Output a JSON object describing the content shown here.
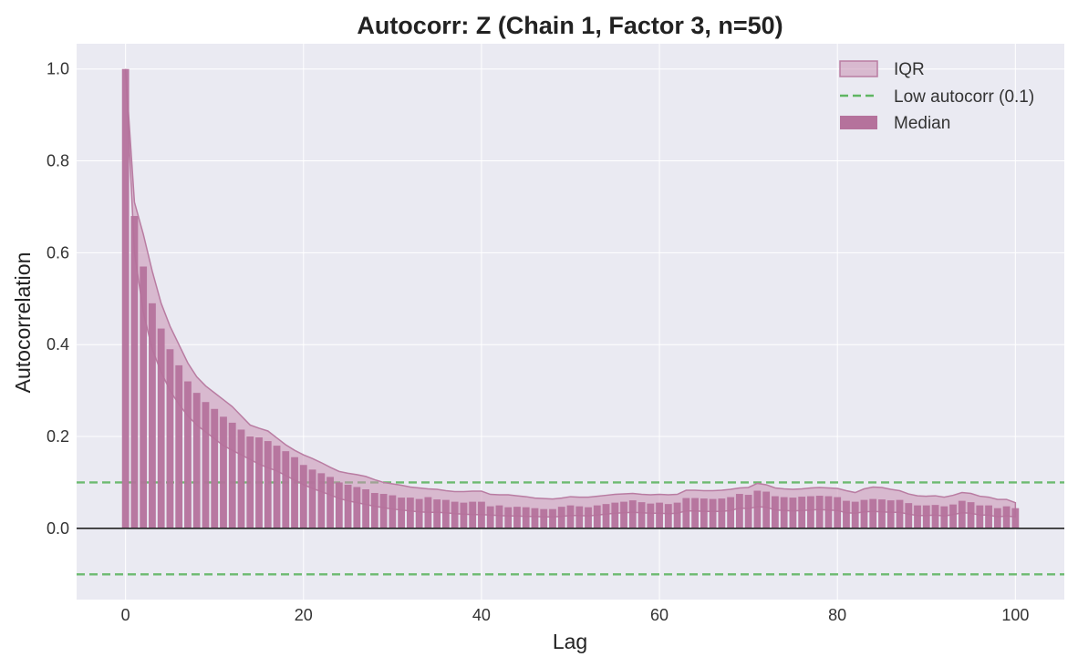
{
  "chart_data": {
    "type": "bar",
    "title": "Autocorr: Z (Chain 1, Factor 3, n=50)",
    "xlabel": "Lag",
    "ylabel": "Autocorrelation",
    "xlim": [
      -5.5,
      105.5
    ],
    "ylim": [
      -0.155,
      1.055
    ],
    "xticks": [
      0,
      20,
      40,
      60,
      80,
      100
    ],
    "yticks": [
      0.0,
      0.2,
      0.4,
      0.6,
      0.8,
      1.0
    ],
    "xtick_labels": [
      "0",
      "20",
      "40",
      "60",
      "80",
      "100"
    ],
    "ytick_labels": [
      "0.0",
      "0.2",
      "0.4",
      "0.6",
      "0.8",
      "1.0"
    ],
    "grid": true,
    "legend": {
      "position": "top-right",
      "entries": [
        {
          "label": "IQR",
          "kind": "band"
        },
        {
          "label": "Low autocorr (0.1)",
          "kind": "dashed-line"
        },
        {
          "label": "Median",
          "kind": "bar"
        }
      ]
    },
    "colors": {
      "background": "#eaeaf2",
      "grid": "#ffffff",
      "median_bar": "#b5729c",
      "iqr_fill": "#c98fb2",
      "iqr_edge": "#b97ca2",
      "threshold": "#5fb562",
      "zero_line": "#222222"
    },
    "threshold": 0.1,
    "lags": [
      0,
      1,
      2,
      3,
      4,
      5,
      6,
      7,
      8,
      9,
      10,
      11,
      12,
      13,
      14,
      15,
      16,
      17,
      18,
      19,
      20,
      21,
      22,
      23,
      24,
      25,
      26,
      27,
      28,
      29,
      30,
      31,
      32,
      33,
      34,
      35,
      36,
      37,
      38,
      39,
      40,
      41,
      42,
      43,
      44,
      45,
      46,
      47,
      48,
      49,
      50,
      51,
      52,
      53,
      54,
      55,
      56,
      57,
      58,
      59,
      60,
      61,
      62,
      63,
      64,
      65,
      66,
      67,
      68,
      69,
      70,
      71,
      72,
      73,
      74,
      75,
      76,
      77,
      78,
      79,
      80,
      81,
      82,
      83,
      84,
      85,
      86,
      87,
      88,
      89,
      90,
      91,
      92,
      93,
      94,
      95,
      96,
      97,
      98,
      99,
      100
    ],
    "median": [
      1.0,
      0.68,
      0.57,
      0.49,
      0.435,
      0.39,
      0.355,
      0.32,
      0.295,
      0.275,
      0.26,
      0.243,
      0.23,
      0.215,
      0.2,
      0.198,
      0.19,
      0.18,
      0.168,
      0.155,
      0.138,
      0.128,
      0.12,
      0.112,
      0.1,
      0.095,
      0.09,
      0.085,
      0.077,
      0.075,
      0.072,
      0.067,
      0.067,
      0.064,
      0.068,
      0.063,
      0.062,
      0.058,
      0.056,
      0.058,
      0.058,
      0.048,
      0.05,
      0.046,
      0.047,
      0.046,
      0.044,
      0.042,
      0.042,
      0.047,
      0.05,
      0.048,
      0.046,
      0.05,
      0.053,
      0.056,
      0.058,
      0.061,
      0.057,
      0.054,
      0.056,
      0.053,
      0.056,
      0.066,
      0.066,
      0.065,
      0.064,
      0.065,
      0.068,
      0.075,
      0.073,
      0.082,
      0.08,
      0.07,
      0.068,
      0.067,
      0.069,
      0.07,
      0.071,
      0.07,
      0.068,
      0.06,
      0.058,
      0.062,
      0.064,
      0.063,
      0.061,
      0.062,
      0.055,
      0.05,
      0.05,
      0.051,
      0.048,
      0.052,
      0.06,
      0.057,
      0.05,
      0.05,
      0.044,
      0.048,
      0.044
    ],
    "q25": [
      1.0,
      0.6,
      0.47,
      0.39,
      0.34,
      0.3,
      0.27,
      0.245,
      0.225,
      0.21,
      0.195,
      0.18,
      0.17,
      0.16,
      0.15,
      0.14,
      0.132,
      0.125,
      0.115,
      0.105,
      0.095,
      0.087,
      0.08,
      0.073,
      0.065,
      0.06,
      0.056,
      0.052,
      0.048,
      0.045,
      0.042,
      0.04,
      0.038,
      0.036,
      0.035,
      0.035,
      0.034,
      0.032,
      0.031,
      0.03,
      0.03,
      0.029,
      0.028,
      0.027,
      0.027,
      0.026,
      0.026,
      0.025,
      0.025,
      0.026,
      0.028,
      0.028,
      0.027,
      0.029,
      0.031,
      0.033,
      0.034,
      0.035,
      0.034,
      0.033,
      0.033,
      0.032,
      0.033,
      0.038,
      0.038,
      0.037,
      0.037,
      0.037,
      0.039,
      0.044,
      0.043,
      0.047,
      0.046,
      0.04,
      0.039,
      0.038,
      0.039,
      0.04,
      0.041,
      0.04,
      0.039,
      0.034,
      0.033,
      0.036,
      0.037,
      0.036,
      0.035,
      0.035,
      0.031,
      0.028,
      0.028,
      0.029,
      0.027,
      0.03,
      0.034,
      0.033,
      0.029,
      0.029,
      0.025,
      0.027,
      0.025
    ],
    "q75": [
      1.0,
      0.71,
      0.64,
      0.56,
      0.49,
      0.44,
      0.4,
      0.36,
      0.33,
      0.31,
      0.295,
      0.28,
      0.265,
      0.245,
      0.225,
      0.218,
      0.212,
      0.197,
      0.182,
      0.17,
      0.16,
      0.152,
      0.143,
      0.133,
      0.124,
      0.12,
      0.117,
      0.113,
      0.106,
      0.1,
      0.097,
      0.094,
      0.09,
      0.088,
      0.086,
      0.085,
      0.082,
      0.08,
      0.08,
      0.081,
      0.081,
      0.074,
      0.073,
      0.073,
      0.071,
      0.069,
      0.066,
      0.065,
      0.064,
      0.066,
      0.069,
      0.068,
      0.068,
      0.07,
      0.072,
      0.074,
      0.075,
      0.076,
      0.074,
      0.073,
      0.074,
      0.073,
      0.074,
      0.083,
      0.083,
      0.082,
      0.082,
      0.083,
      0.085,
      0.088,
      0.089,
      0.098,
      0.095,
      0.088,
      0.086,
      0.085,
      0.086,
      0.088,
      0.089,
      0.088,
      0.087,
      0.082,
      0.078,
      0.086,
      0.09,
      0.089,
      0.085,
      0.082,
      0.075,
      0.071,
      0.07,
      0.071,
      0.068,
      0.072,
      0.078,
      0.076,
      0.07,
      0.068,
      0.063,
      0.063,
      0.056
    ]
  }
}
